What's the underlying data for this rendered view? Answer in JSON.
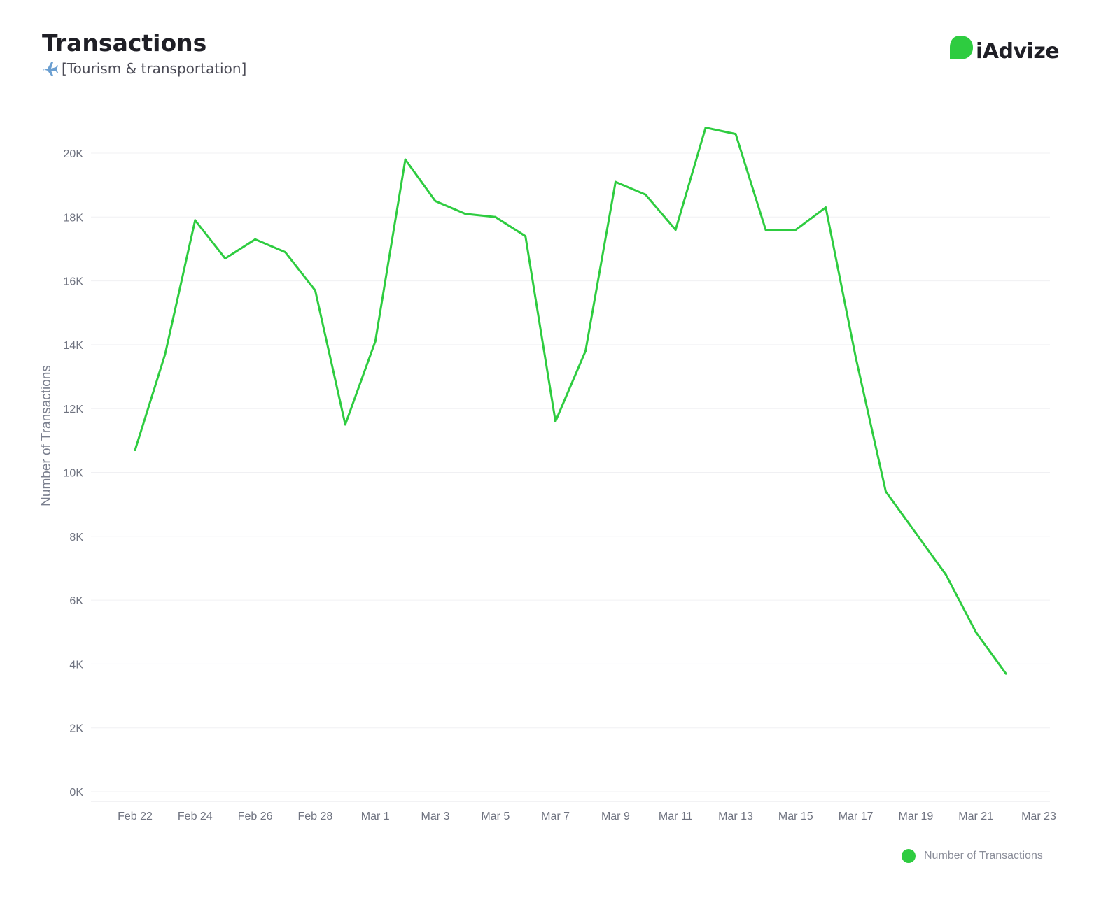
{
  "header": {
    "title": "Transactions",
    "subtitle": "[Tourism & transportation]",
    "subtitle_icon": "airplane-icon"
  },
  "brand": {
    "name": "iAdvize",
    "logo_icon": "chat-bubble-icon",
    "color": "#2ecc40"
  },
  "legend": {
    "label": "Number of Transactions",
    "position": "bottom-right"
  },
  "chart_data": {
    "type": "line",
    "title": "Transactions",
    "subtitle": "[Tourism & transportation]",
    "xlabel": "",
    "ylabel": "Number of Transactions",
    "ylim": [
      0,
      22000
    ],
    "yticks": [
      0,
      2000,
      4000,
      6000,
      8000,
      10000,
      12000,
      14000,
      16000,
      18000,
      20000
    ],
    "ytick_labels": [
      "0K",
      "2K",
      "4K",
      "6K",
      "8K",
      "10K",
      "12K",
      "14K",
      "16K",
      "18K",
      "20K"
    ],
    "xtick_labels": [
      "Feb 22",
      "Feb 24",
      "Feb 26",
      "Feb 28",
      "Mar 1",
      "Mar 3",
      "Mar 5",
      "Mar 7",
      "Mar 9",
      "Mar 11",
      "Mar 13",
      "Mar 15",
      "Mar 17",
      "Mar 19",
      "Mar 21",
      "Mar 23"
    ],
    "grid": true,
    "legend_position": "bottom-right",
    "color": "#2ecc40",
    "x": [
      "Feb 22",
      "Feb 23",
      "Feb 24",
      "Feb 25",
      "Feb 26",
      "Feb 27",
      "Feb 28",
      "Feb 29",
      "Mar 1",
      "Mar 2",
      "Mar 3",
      "Mar 4",
      "Mar 5",
      "Mar 6",
      "Mar 7",
      "Mar 8",
      "Mar 9",
      "Mar 10",
      "Mar 11",
      "Mar 12",
      "Mar 13",
      "Mar 14",
      "Mar 15",
      "Mar 16",
      "Mar 17",
      "Mar 18",
      "Mar 19",
      "Mar 20",
      "Mar 21",
      "Mar 22"
    ],
    "series": [
      {
        "name": "Number of Transactions",
        "values": [
          10700,
          13700,
          17900,
          16700,
          17300,
          16900,
          15700,
          11500,
          14100,
          19800,
          18500,
          18100,
          18000,
          17400,
          11600,
          13800,
          19100,
          18700,
          17600,
          20800,
          20600,
          17600,
          17600,
          18300,
          13600,
          9400,
          8100,
          6800,
          5000,
          3700
        ]
      }
    ]
  }
}
